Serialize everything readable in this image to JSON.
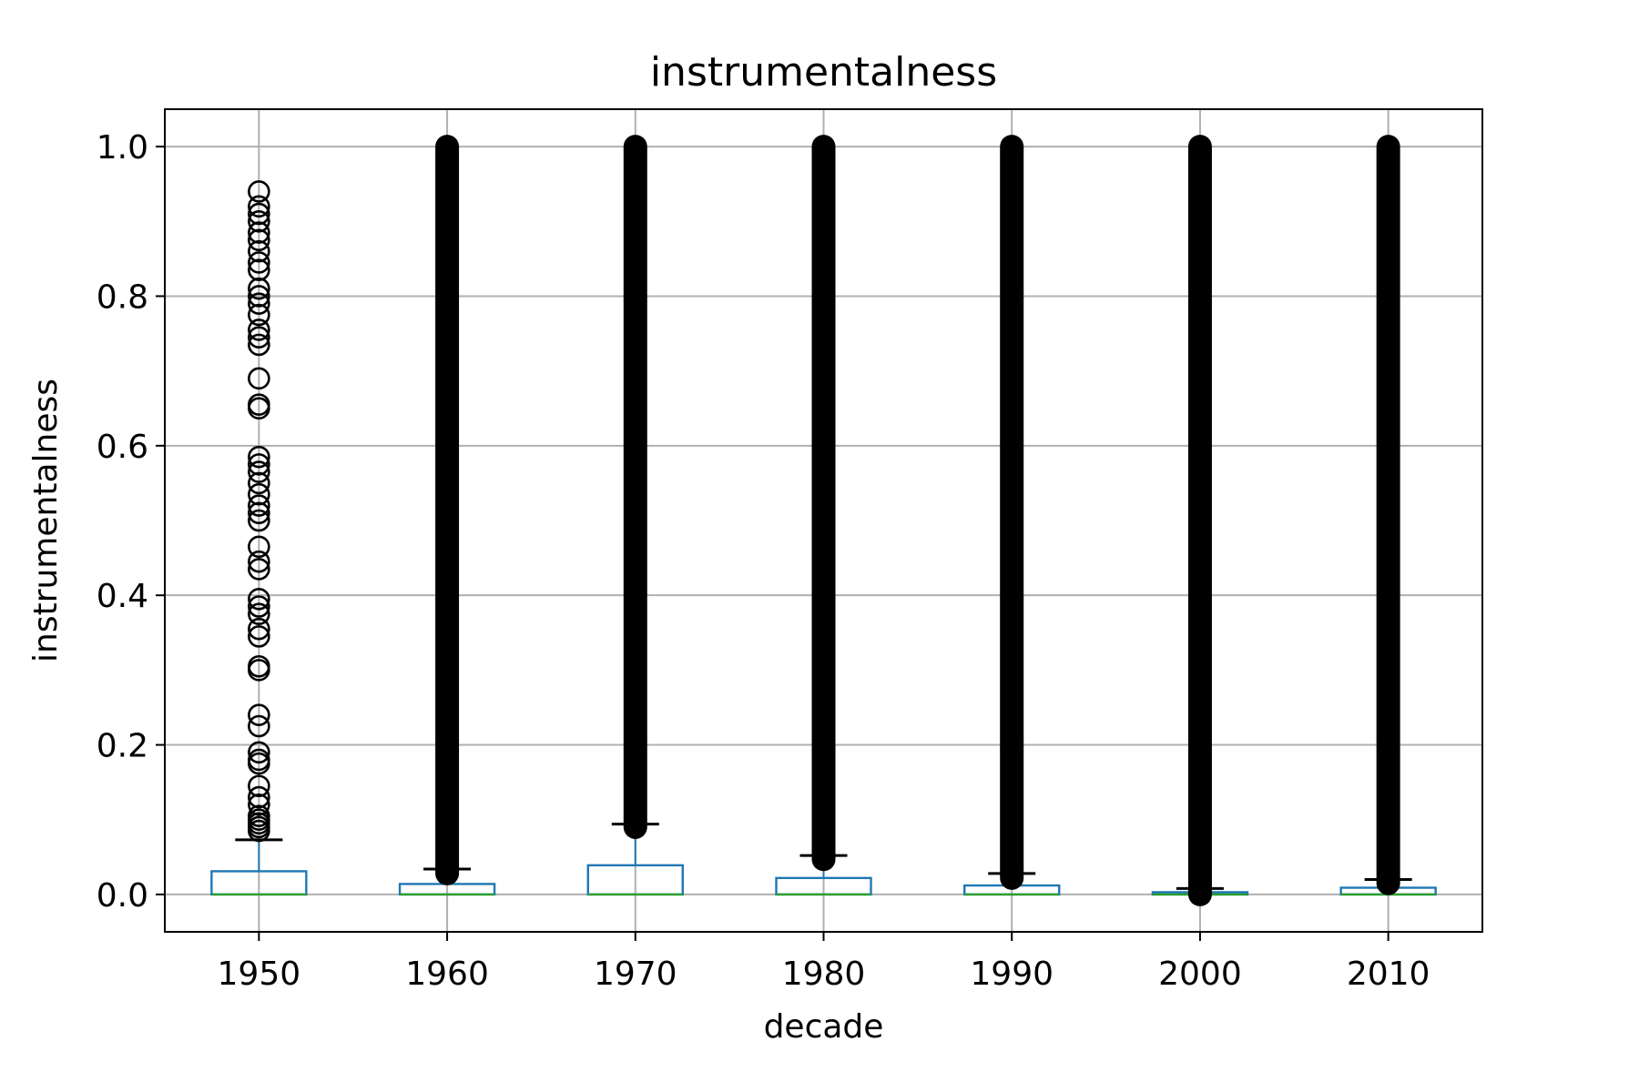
{
  "chart_data": {
    "type": "box",
    "title": "instrumentalness",
    "xlabel": "decade",
    "ylabel": "instrumentalness",
    "ylim": [
      -0.05,
      1.05
    ],
    "yticks": [
      0.0,
      0.2,
      0.4,
      0.6,
      0.8,
      1.0
    ],
    "ytick_labels": [
      "0.0",
      "0.2",
      "0.4",
      "0.6",
      "0.8",
      "1.0"
    ],
    "grid": true,
    "categories": [
      "1950",
      "1960",
      "1970",
      "1980",
      "1990",
      "2000",
      "2010"
    ],
    "boxes": [
      {
        "q1": 0.0,
        "median": 0.0,
        "q3": 0.031,
        "whisker_low": 0.0,
        "whisker_high": 0.073,
        "outliers_dense": false,
        "outliers": [
          0.085,
          0.09,
          0.095,
          0.1,
          0.105,
          0.12,
          0.13,
          0.145,
          0.175,
          0.18,
          0.19,
          0.225,
          0.24,
          0.3,
          0.305,
          0.345,
          0.355,
          0.375,
          0.385,
          0.395,
          0.435,
          0.445,
          0.465,
          0.5,
          0.51,
          0.52,
          0.535,
          0.55,
          0.565,
          0.575,
          0.585,
          0.65,
          0.655,
          0.69,
          0.735,
          0.745,
          0.755,
          0.775,
          0.79,
          0.8,
          0.81,
          0.835,
          0.845,
          0.86,
          0.875,
          0.885,
          0.9,
          0.91,
          0.92,
          0.94
        ]
      },
      {
        "q1": 0.0,
        "median": 0.0,
        "q3": 0.014,
        "whisker_low": 0.0,
        "whisker_high": 0.034,
        "outliers_dense": true,
        "outlier_range": [
          0.028,
          1.0
        ],
        "outliers": []
      },
      {
        "q1": 0.0,
        "median": 0.0,
        "q3": 0.039,
        "whisker_low": 0.0,
        "whisker_high": 0.094,
        "outliers_dense": true,
        "outlier_range": [
          0.09,
          1.0
        ],
        "outliers": []
      },
      {
        "q1": 0.0,
        "median": 0.0,
        "q3": 0.022,
        "whisker_low": 0.0,
        "whisker_high": 0.052,
        "outliers_dense": true,
        "outlier_range": [
          0.047,
          1.0
        ],
        "outliers": []
      },
      {
        "q1": 0.0,
        "median": 0.0,
        "q3": 0.012,
        "whisker_low": 0.0,
        "whisker_high": 0.028,
        "outliers_dense": true,
        "outlier_range": [
          0.022,
          1.0
        ],
        "outliers": []
      },
      {
        "q1": 0.0,
        "median": 0.0,
        "q3": 0.003,
        "whisker_low": 0.0,
        "whisker_high": 0.008,
        "outliers_dense": true,
        "outlier_range": [
          0.0,
          1.0
        ],
        "outliers": []
      },
      {
        "q1": 0.0,
        "median": 0.0,
        "q3": 0.009,
        "whisker_low": 0.0,
        "whisker_high": 0.02,
        "outliers_dense": true,
        "outlier_range": [
          0.015,
          1.0
        ],
        "outliers": []
      }
    ],
    "colors": {
      "box": "#1f77b4",
      "median": "#2ca02c",
      "whisker": "#1f77b4",
      "cap": "#000000",
      "outlier": "#000000",
      "grid": "#b0b0b0"
    }
  }
}
